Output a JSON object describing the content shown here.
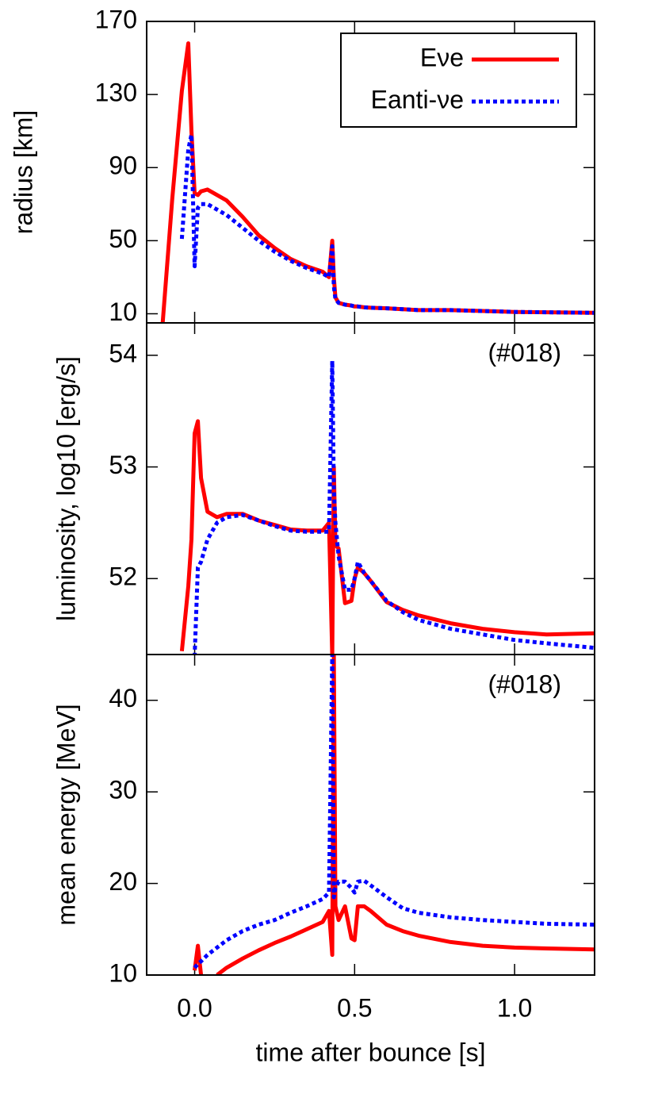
{
  "chart_data": [
    {
      "type": "line",
      "y_label": "radius [km]",
      "legend": "top-right",
      "x": [
        -0.1,
        -0.07,
        -0.04,
        -0.02,
        -0.01,
        0.0,
        0.01,
        0.02,
        0.04,
        0.07,
        0.1,
        0.15,
        0.2,
        0.25,
        0.3,
        0.35,
        0.4,
        0.42,
        0.43,
        0.435,
        0.44,
        0.45,
        0.47,
        0.49,
        0.5,
        0.51,
        0.53,
        0.55,
        0.6,
        0.65,
        0.7,
        0.8,
        0.9,
        1.0,
        1.1,
        1.25
      ],
      "xlim": [
        -0.15,
        1.25
      ],
      "ylim": [
        5,
        170
      ],
      "yticks": [
        10,
        50,
        90,
        130,
        170
      ],
      "series": [
        {
          "name": "Eνe",
          "color": "#ff0000",
          "line_style": "solid",
          "values": [
            5,
            73,
            132,
            158,
            110,
            76,
            75,
            77,
            78,
            75,
            72,
            63,
            53,
            46,
            40,
            36,
            33,
            30,
            50,
            30,
            19,
            16,
            15,
            14.5,
            14,
            14,
            13.5,
            13.3,
            13,
            12.5,
            12,
            12,
            11.5,
            11,
            10.8,
            10.5
          ]
        },
        {
          "name": "Eanti-νe",
          "color": "#0000ff",
          "line_style": "dotted",
          "values": [
            null,
            null,
            51,
            100,
            108,
            36,
            68,
            70,
            70,
            67,
            64,
            57,
            50,
            44,
            39,
            35,
            32,
            30,
            47,
            25,
            18,
            16,
            15,
            14.5,
            14,
            14,
            13.5,
            13.3,
            13,
            12.5,
            12,
            12,
            11.5,
            11,
            10.8,
            10.5
          ]
        }
      ]
    },
    {
      "type": "line",
      "y_label": "luminosity, log10 [erg/s]",
      "annotation": "(#018)",
      "x": [
        -0.1,
        -0.07,
        -0.04,
        -0.02,
        -0.01,
        0.0,
        0.01,
        0.02,
        0.04,
        0.07,
        0.1,
        0.15,
        0.2,
        0.25,
        0.3,
        0.35,
        0.4,
        0.42,
        0.43,
        0.435,
        0.44,
        0.45,
        0.47,
        0.49,
        0.5,
        0.51,
        0.53,
        0.55,
        0.6,
        0.65,
        0.7,
        0.8,
        0.9,
        1.0,
        1.1,
        1.25
      ],
      "xlim": [
        -0.15,
        1.25
      ],
      "ylim": [
        51.32,
        54.29
      ],
      "yticks": [
        52,
        53,
        54
      ],
      "series": [
        {
          "name": "Eνe",
          "color": "#ff0000",
          "line_style": "solid",
          "values": [
            null,
            null,
            51.35,
            51.93,
            52.35,
            53.3,
            53.41,
            52.9,
            52.6,
            52.55,
            52.58,
            52.58,
            52.52,
            52.48,
            52.44,
            52.43,
            52.43,
            52.5,
            51.3,
            53.0,
            52.3,
            52.27,
            51.78,
            51.8,
            52.0,
            52.1,
            52.05,
            51.98,
            51.79,
            51.72,
            51.67,
            51.6,
            51.55,
            51.52,
            51.5,
            51.51
          ]
        },
        {
          "name": "Eanti-νe",
          "color": "#0000ff",
          "line_style": "dotted",
          "values": [
            null,
            null,
            null,
            null,
            null,
            51.3,
            52.1,
            52.15,
            52.35,
            52.5,
            52.55,
            52.57,
            52.52,
            52.47,
            52.43,
            52.42,
            52.42,
            52.42,
            53.95,
            52.8,
            52.5,
            52.2,
            51.9,
            51.9,
            52.0,
            52.15,
            52.05,
            51.98,
            51.8,
            51.7,
            51.63,
            51.55,
            51.5,
            51.45,
            51.42,
            51.38
          ]
        }
      ]
    },
    {
      "type": "line",
      "y_label": "mean energy [MeV]",
      "x_label": "time after bounce [s]",
      "annotation": "(#018)",
      "x": [
        -0.1,
        -0.07,
        -0.04,
        -0.02,
        -0.01,
        0.0,
        0.01,
        0.02,
        0.04,
        0.07,
        0.1,
        0.15,
        0.2,
        0.25,
        0.3,
        0.35,
        0.4,
        0.42,
        0.43,
        0.435,
        0.44,
        0.45,
        0.47,
        0.49,
        0.5,
        0.51,
        0.53,
        0.55,
        0.6,
        0.65,
        0.7,
        0.8,
        0.9,
        1.0,
        1.1,
        1.25
      ],
      "xlim": [
        -0.15,
        1.25
      ],
      "ylim": [
        10,
        45
      ],
      "yticks": [
        10,
        20,
        30,
        40
      ],
      "xticks": [
        {
          "value": 0,
          "label": "0.0"
        },
        {
          "value": 0.5,
          "label": "0.5"
        },
        {
          "value": 1,
          "label": "1.0"
        }
      ],
      "series": [
        {
          "name": "Eνe",
          "color": "#ff0000",
          "line_style": "solid",
          "values": [
            null,
            null,
            null,
            null,
            null,
            10.5,
            13.2,
            10.0,
            null,
            10.0,
            10.8,
            11.8,
            12.7,
            13.5,
            14.2,
            15.0,
            15.8,
            17,
            12.2,
            45,
            17.5,
            16,
            17.5,
            14,
            13.8,
            17.5,
            17.5,
            17,
            15.5,
            14.8,
            14.3,
            13.6,
            13.2,
            13.0,
            12.9,
            12.8
          ]
        },
        {
          "name": "Eanti-νe",
          "color": "#0000ff",
          "line_style": "dotted",
          "values": [
            null,
            null,
            null,
            null,
            null,
            10.8,
            11.2,
            11.5,
            12.2,
            13.0,
            13.8,
            14.8,
            15.5,
            16.0,
            16.8,
            17.5,
            18.3,
            19.0,
            45,
            18.5,
            19.5,
            20.2,
            20.2,
            19.5,
            19.0,
            20.2,
            20.3,
            19.8,
            18.5,
            17.3,
            16.8,
            16.3,
            16.0,
            15.8,
            15.6,
            15.5
          ]
        }
      ]
    }
  ]
}
